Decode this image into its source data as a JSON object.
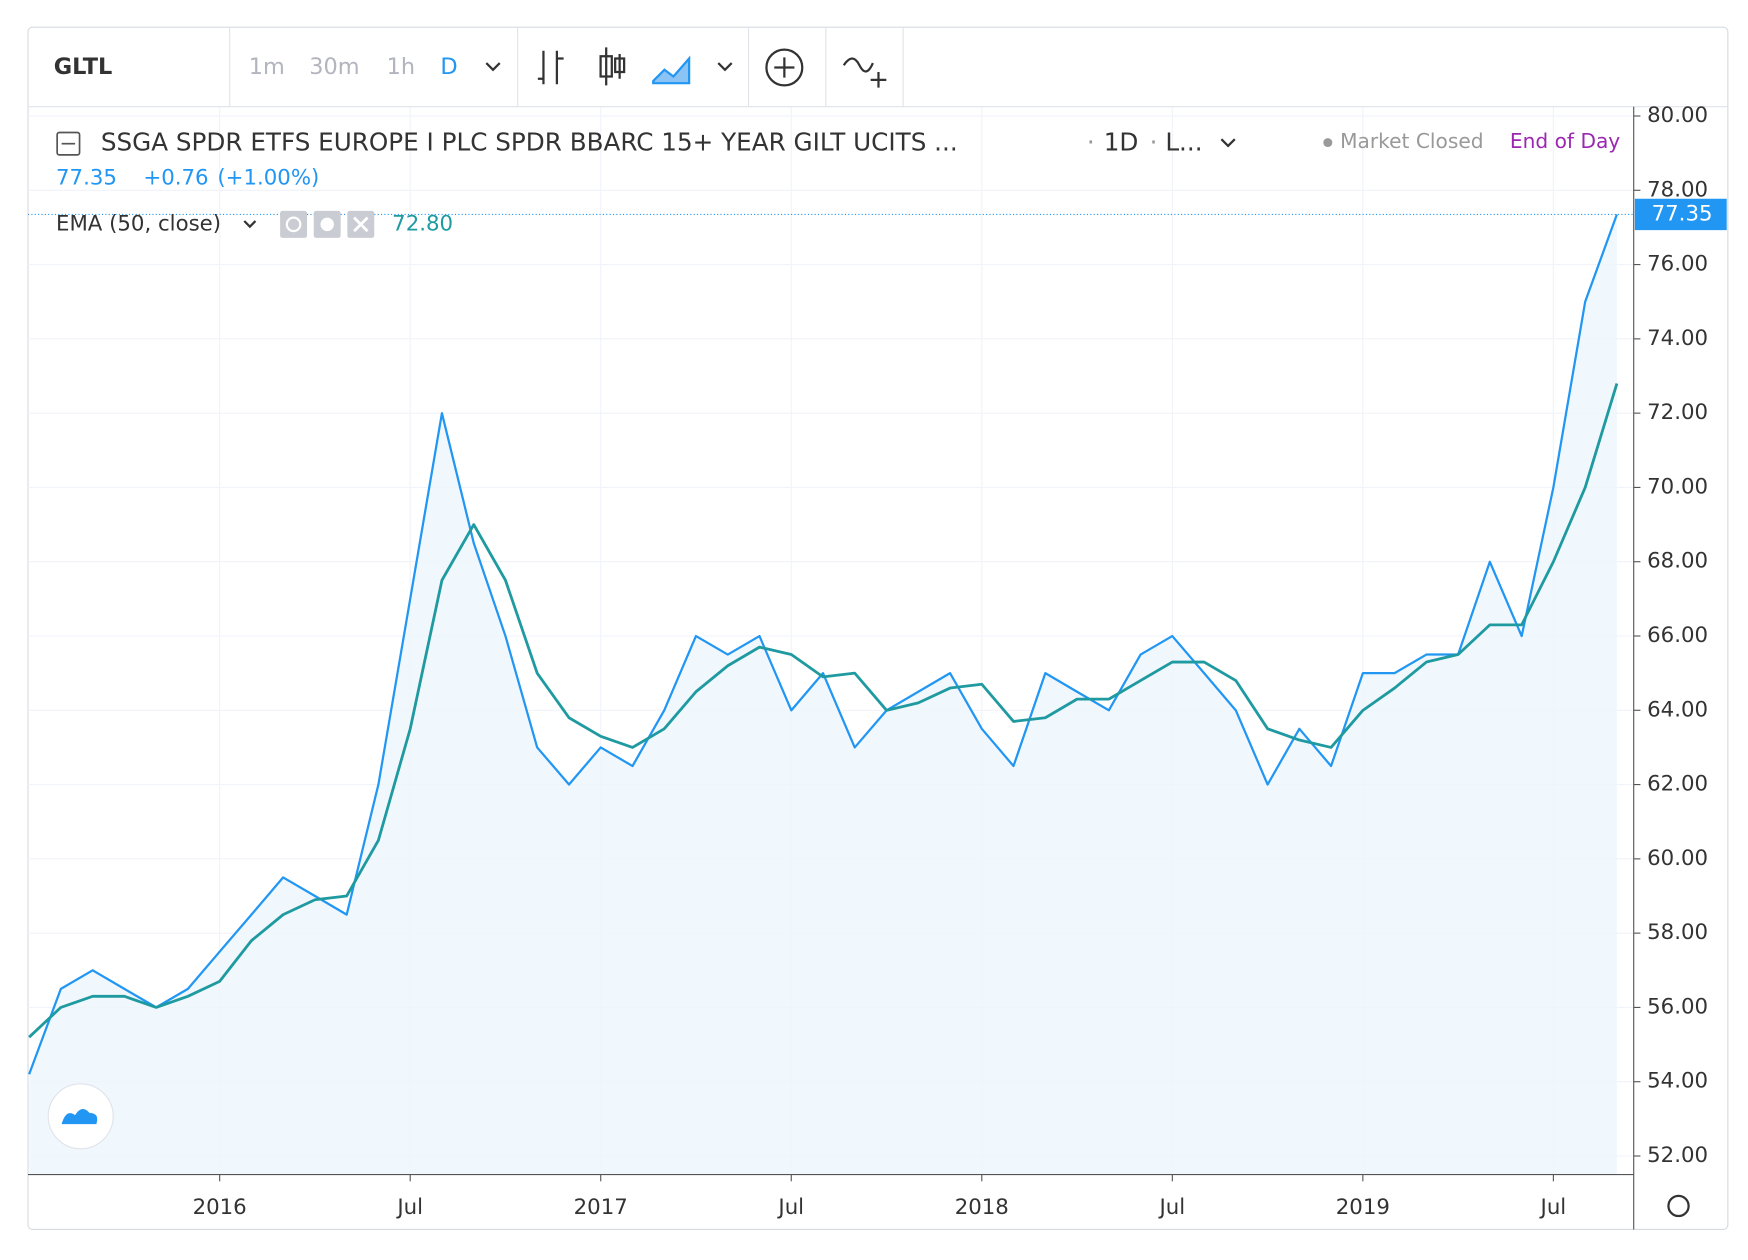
{
  "toolbar": {
    "intervals": [
      "1m",
      "30m",
      "1h",
      "D"
    ]
  },
  "chart_data": {
    "type": "line",
    "title": "SSGA SPDR ETFS EUROPE I PLC SPDR BBARC 15+ YEAR GILT UCITS ...",
    "interval": "1D",
    "style_label": "L...",
    "status": "Market Closed",
    "session": "End of Day",
    "change": "+0.76",
    "change_pct": "(+1.00%)",
    "x": [
      "2015-07",
      "2015-08",
      "2015-09",
      "2015-10",
      "2015-11",
      "2015-12",
      "2016-01",
      "2016-02",
      "2016-03",
      "2016-04",
      "2016-05",
      "2016-06",
      "2016-07",
      "2016-08",
      "2016-09",
      "2016-10",
      "2016-11",
      "2016-12",
      "2017-01",
      "2017-02",
      "2017-03",
      "2017-04",
      "2017-05",
      "2017-06",
      "2017-07",
      "2017-08",
      "2017-09",
      "2017-10",
      "2017-11",
      "2017-12",
      "2018-01",
      "2018-02",
      "2018-03",
      "2018-04",
      "2018-05",
      "2018-06",
      "2018-07",
      "2018-08",
      "2018-09",
      "2018-10",
      "2018-11",
      "2018-12",
      "2019-01",
      "2019-02",
      "2019-03",
      "2019-04",
      "2019-05",
      "2019-06",
      "2019-07",
      "2019-08",
      "2019-09"
    ],
    "series": [
      {
        "name": "GLTL",
        "color": "#2196f3",
        "values": [
          54.2,
          56.5,
          57.0,
          56.5,
          56.0,
          56.5,
          57.5,
          58.5,
          59.5,
          59.0,
          58.5,
          62.0,
          67.0,
          72.0,
          68.5,
          66.0,
          63.0,
          62.0,
          63.0,
          62.5,
          64.0,
          66.0,
          65.5,
          66.0,
          64.0,
          65.0,
          63.0,
          64.0,
          64.5,
          65.0,
          63.5,
          62.5,
          65.0,
          64.5,
          64.0,
          65.5,
          66.0,
          65.0,
          64.0,
          62.0,
          63.5,
          62.5,
          65.0,
          65.0,
          65.5,
          65.5,
          68.0,
          66.0,
          70.0,
          75.0,
          77.35
        ]
      },
      {
        "name": "EMA (50, close)",
        "color": "#1e9aa0",
        "last_label": "72.80",
        "values": [
          55.2,
          56.0,
          56.3,
          56.3,
          56.0,
          56.3,
          56.7,
          57.8,
          58.5,
          58.9,
          59.0,
          60.5,
          63.5,
          67.5,
          69.0,
          67.5,
          65.0,
          63.8,
          63.3,
          63.0,
          63.5,
          64.5,
          65.2,
          65.7,
          65.5,
          64.9,
          65.0,
          64.0,
          64.2,
          64.6,
          64.7,
          63.7,
          63.8,
          64.3,
          64.3,
          64.8,
          65.3,
          65.3,
          64.8,
          63.5,
          63.2,
          63.0,
          64.0,
          64.6,
          65.3,
          65.5,
          66.3,
          66.3,
          68.0,
          70.0,
          72.8
        ]
      }
    ],
    "ylim": [
      51.5,
      80.25
    ],
    "yticks": [
      {
        "value": 52,
        "label": "52.00"
      },
      {
        "value": 54,
        "label": "54.00"
      },
      {
        "value": 56,
        "label": "56.00"
      },
      {
        "value": 58,
        "label": "58.00"
      },
      {
        "value": 60,
        "label": "60.00"
      },
      {
        "value": 62,
        "label": "62.00"
      },
      {
        "value": 64,
        "label": "64.00"
      },
      {
        "value": 66,
        "label": "66.00"
      },
      {
        "value": 68,
        "label": "68.00"
      },
      {
        "value": 70,
        "label": "70.00"
      },
      {
        "value": 72,
        "label": "72.00"
      },
      {
        "value": 74,
        "label": "74.00"
      },
      {
        "value": 76,
        "label": "76.00"
      },
      {
        "value": 78,
        "label": "78.00"
      },
      {
        "value": 80,
        "label": "80.00"
      }
    ],
    "xticks": [
      {
        "value": "2016-01",
        "label": "2016"
      },
      {
        "value": "2016-07",
        "label": "Jul"
      },
      {
        "value": "2017-01",
        "label": "2017"
      },
      {
        "value": "2017-07",
        "label": "Jul"
      },
      {
        "value": "2018-01",
        "label": "2018"
      },
      {
        "value": "2018-07",
        "label": "Jul"
      },
      {
        "value": "2019-01",
        "label": "2019"
      },
      {
        "value": "2019-07",
        "label": "Jul"
      }
    ],
    "grid": true
  }
}
